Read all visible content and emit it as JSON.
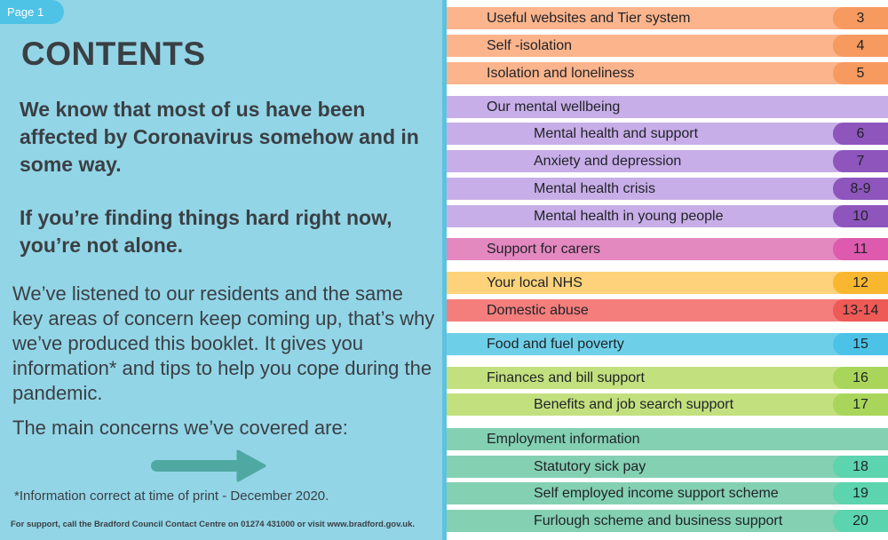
{
  "page_tab": "Page 1",
  "title": "CONTENTS",
  "intro_bold_1": "We know that most of us have been affected by Coronavirus somehow and in some way.",
  "intro_bold_2": "If you’re finding things hard right now, you’re not alone.",
  "body_paragraph": "We’ve listened to our residents and the same key areas of concern keep coming up, that’s why we’ve produced this booklet. It gives you information* and tips to help you cope during the pandemic.",
  "main_concerns": "The main concerns we’ve covered are:",
  "footnote": "*Information correct at time of print - December 2020.",
  "footer": "For support, call the Bradford Council Contact Centre on 01274 431000 or visit www.bradford.gov.uk.",
  "colors": {
    "orange_bg": "#fbb48c",
    "orange_num": "#f79a5f",
    "purple_bg": "#c8aee8",
    "purple_num": "#8e55bd",
    "pink_bg": "#e488c0",
    "pink_num": "#de5aae",
    "yellow_bg": "#fdd27a",
    "yellow_num": "#f9b72f",
    "red_bg": "#f47e7c",
    "red_num": "#ee5a56",
    "blue_bg": "#6ed0e8",
    "blue_num": "#4cc3e6",
    "green_bg": "#c3e07e",
    "green_num": "#a9d65a",
    "teal_bg": "#84d0b3",
    "teal_num": "#5cd4ae"
  },
  "toc": [
    {
      "label": "Useful websites and Tier system",
      "page": "3",
      "sub": false,
      "color": "orange"
    },
    {
      "label": "Self -isolation",
      "page": "4",
      "sub": false,
      "color": "orange"
    },
    {
      "label": "Isolation and loneliness",
      "page": "5",
      "sub": false,
      "color": "orange"
    },
    {
      "label": "Our mental wellbeing",
      "page": "",
      "sub": false,
      "color": "purple"
    },
    {
      "label": "Mental health and support",
      "page": "6",
      "sub": true,
      "color": "purple"
    },
    {
      "label": "Anxiety and depression",
      "page": "7",
      "sub": true,
      "color": "purple"
    },
    {
      "label": "Mental health crisis",
      "page": "8-9",
      "sub": true,
      "color": "purple"
    },
    {
      "label": "Mental health in young people",
      "page": "10",
      "sub": true,
      "color": "purple"
    },
    {
      "label": "Support for carers",
      "page": "11",
      "sub": false,
      "color": "pink"
    },
    {
      "label": "Your local NHS",
      "page": "12",
      "sub": false,
      "color": "yellow"
    },
    {
      "label": "Domestic abuse",
      "page": "13-14",
      "sub": false,
      "color": "red"
    },
    {
      "label": "Food and fuel poverty",
      "page": "15",
      "sub": false,
      "color": "blue"
    },
    {
      "label": "Finances and bill support",
      "page": "16",
      "sub": false,
      "color": "green"
    },
    {
      "label": "Benefits and job search support",
      "page": "17",
      "sub": true,
      "color": "green"
    },
    {
      "label": "Employment information",
      "page": "",
      "sub": false,
      "color": "teal"
    },
    {
      "label": "Statutory sick pay",
      "page": "18",
      "sub": true,
      "color": "teal"
    },
    {
      "label": "Self employed income support scheme",
      "page": "19",
      "sub": true,
      "color": "teal"
    },
    {
      "label": "Furlough scheme and business support",
      "page": "20",
      "sub": true,
      "color": "teal"
    }
  ]
}
